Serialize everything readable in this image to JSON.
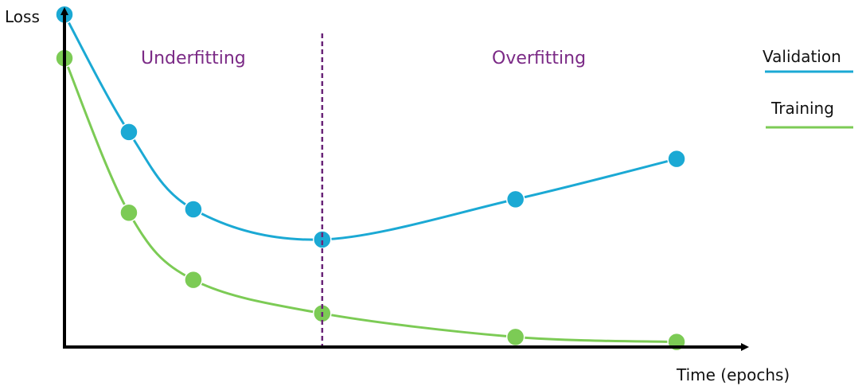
{
  "chart_data": {
    "type": "line",
    "xlabel": "Time (epochs)",
    "ylabel": "Loss",
    "regions": [
      {
        "name": "underfitting",
        "label": "Underfitting"
      },
      {
        "name": "overfitting",
        "label": "Overfitting"
      }
    ],
    "divider_x": 4,
    "x": [
      0,
      1,
      2,
      4,
      7,
      9.5
    ],
    "xlim": [
      0,
      10.5
    ],
    "ylim": [
      0,
      10
    ],
    "series": [
      {
        "key": "validation",
        "name": "Validation",
        "color": "#1ba9d4",
        "values": [
          9.9,
          6.4,
          4.1,
          3.2,
          4.4,
          5.6
        ]
      },
      {
        "key": "training",
        "name": "Training",
        "color": "#7ccb55",
        "values": [
          8.6,
          4.0,
          2.0,
          1.0,
          0.3,
          0.15
        ]
      }
    ],
    "grid": false,
    "legend": "top-right",
    "divider_color": "#6a2478",
    "axis_color": "#000000"
  }
}
